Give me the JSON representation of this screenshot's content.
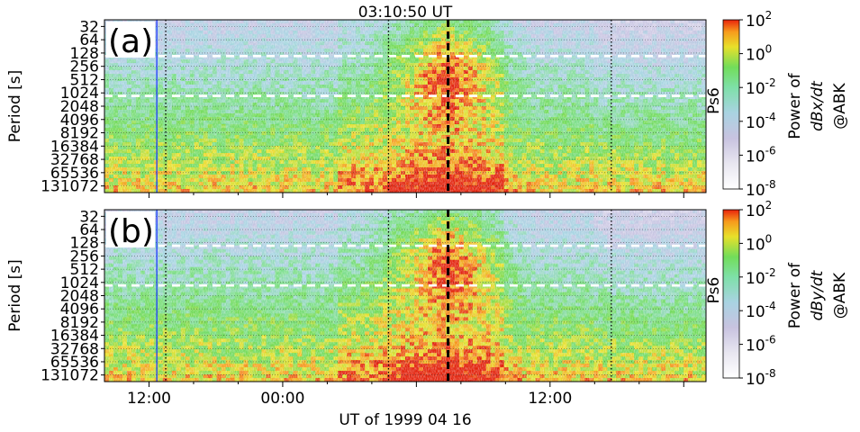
{
  "figure": {
    "title": "03:10:50 UT",
    "xlabel": "UT of 1999 04 16"
  },
  "chart_data": [
    {
      "type": "heatmap",
      "panel_label": "(a)",
      "ylabel": "Period [s]",
      "y_scale": "log2",
      "y_ticks": [
        "32",
        "64",
        "128",
        "256",
        "512",
        "1024",
        "2048",
        "4096",
        "8192",
        "16384",
        "32768",
        "65536",
        "131072"
      ],
      "x_ticks": [
        "12:00",
        "00:00",
        "12:00"
      ],
      "x_range_hours": [
        -16,
        38
      ],
      "vertical_lines": {
        "blue_solid_hour": -11.3,
        "dotted_hours": [
          -10.5,
          9.5,
          29.5
        ],
        "event_dashed_hour": 14.85
      },
      "white_dashed_periods": [
        150,
        1200
      ],
      "colorbar": {
        "label_line1": "Power of",
        "label_line2": "dBx/dt",
        "label_line3": "@ABK",
        "ticks": [
          "10^2",
          "10^0",
          "10^-2",
          "10^-4",
          "10^-6",
          "10^-8"
        ],
        "range_log10": [
          -8,
          2
        ],
        "band_label": "Ps6"
      }
    },
    {
      "type": "heatmap",
      "panel_label": "(b)",
      "ylabel": "Period [s]",
      "y_scale": "log2",
      "y_ticks": [
        "32",
        "64",
        "128",
        "256",
        "512",
        "1024",
        "2048",
        "4096",
        "8192",
        "16384",
        "32768",
        "65536",
        "131072"
      ],
      "x_ticks": [
        "12:00",
        "00:00",
        "12:00"
      ],
      "x_range_hours": [
        -16,
        38
      ],
      "vertical_lines": {
        "blue_solid_hour": -11.3,
        "dotted_hours": [
          -10.5,
          9.5,
          29.5
        ],
        "event_dashed_hour": 14.85
      },
      "white_dashed_periods": [
        150,
        1200
      ],
      "colorbar": {
        "label_line1": "Power of",
        "label_line2": "dBy/dt",
        "label_line3": "@ABK",
        "ticks": [
          "10^2",
          "10^0",
          "10^-2",
          "10^-4",
          "10^-6",
          "10^-8"
        ],
        "range_log10": [
          -8,
          2
        ],
        "band_label": "Ps6"
      }
    }
  ]
}
